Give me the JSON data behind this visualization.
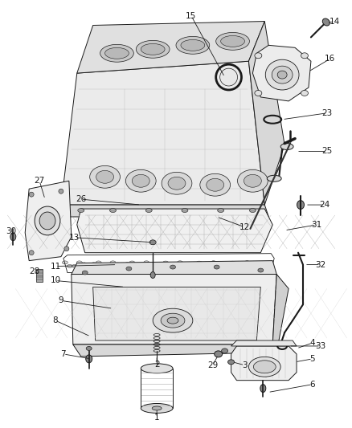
{
  "background_color": "#ffffff",
  "fig_width": 4.38,
  "fig_height": 5.33,
  "dpi": 100,
  "lc": "#1a1a1a",
  "fc_light": "#f0f0f0",
  "fc_mid": "#e0e0e0",
  "fc_dark": "#c8c8c8",
  "ec": "#1a1a1a",
  "label_color": "#1a1a1a",
  "label_fontsize": 7.5,
  "leader_lw": 0.6,
  "part_lw": 0.7
}
